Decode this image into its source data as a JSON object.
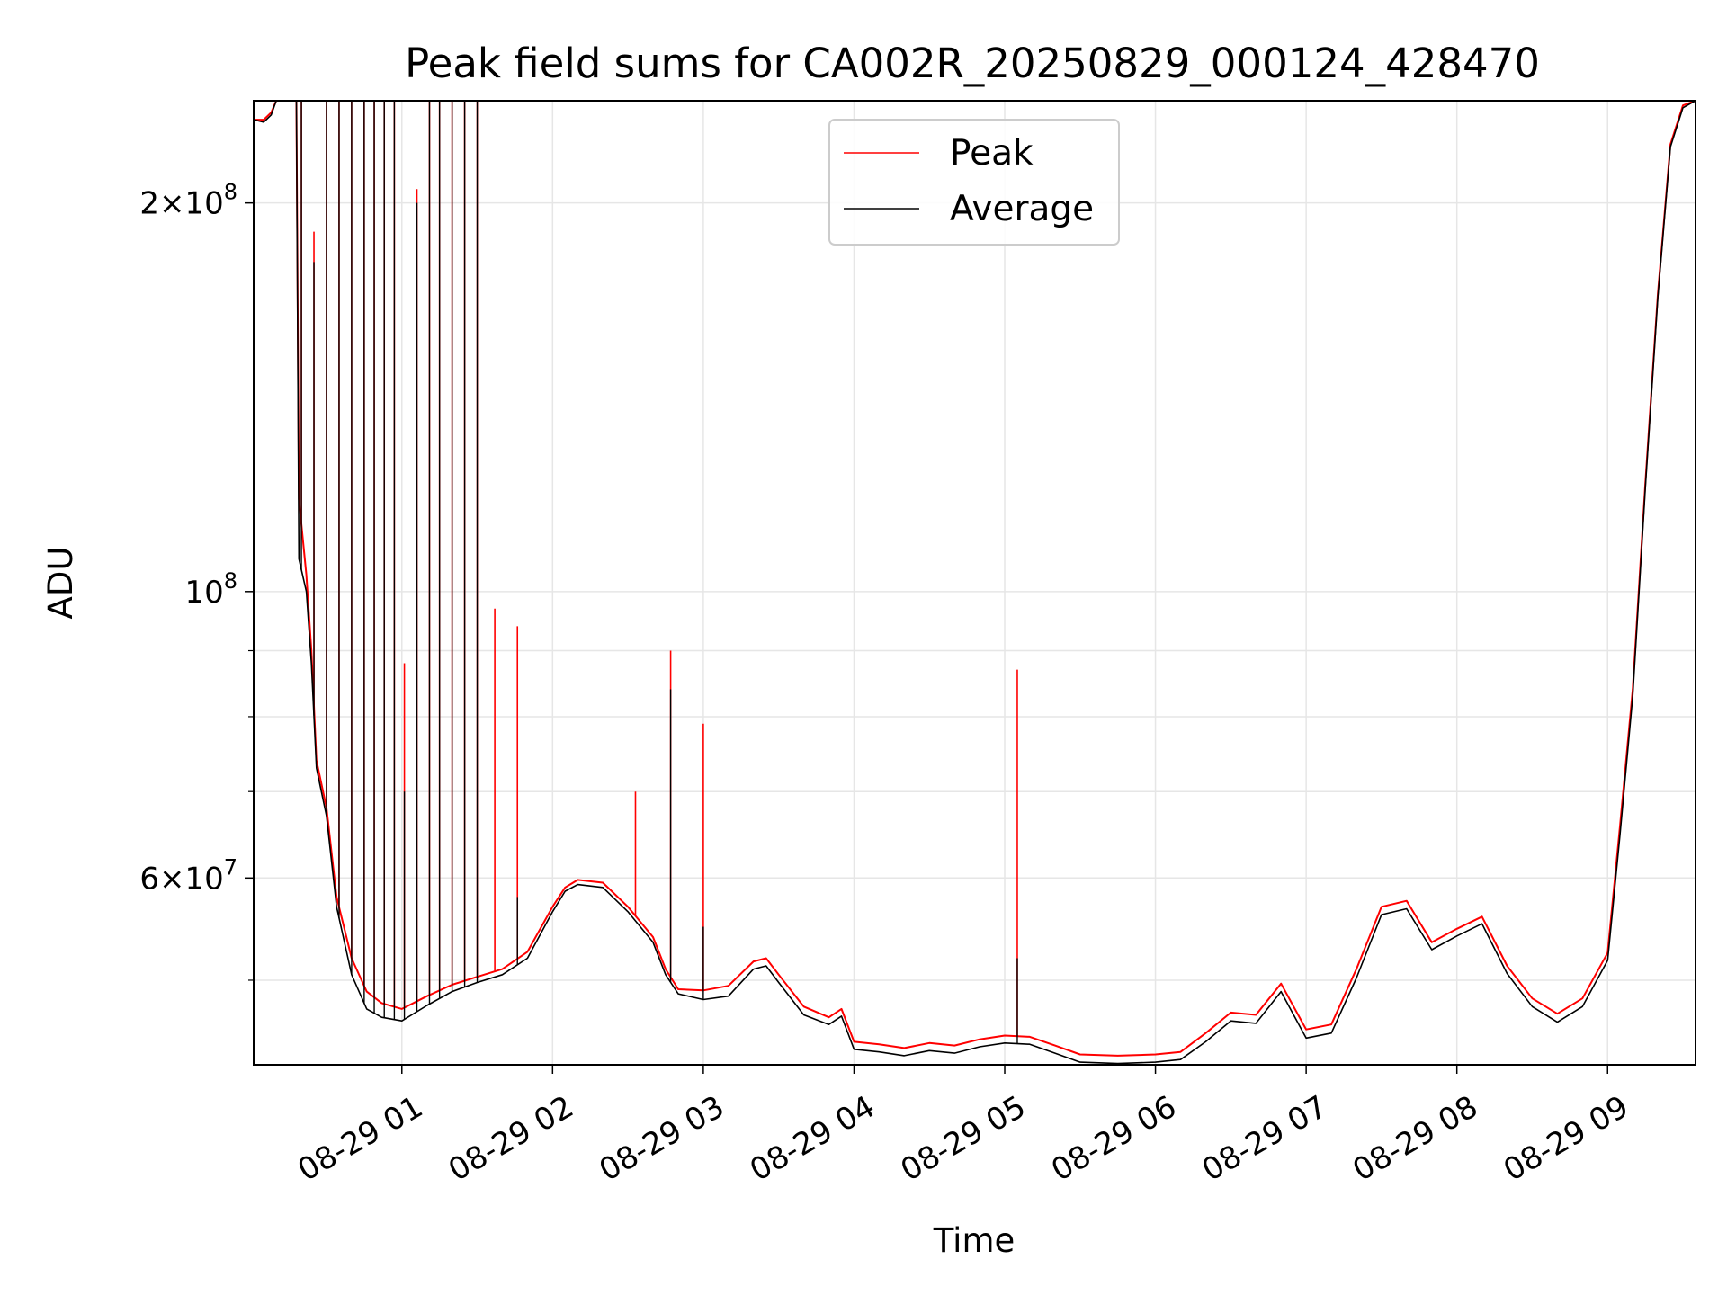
{
  "chart_data": {
    "type": "line",
    "title": "Peak field sums for CA002R_20250829_000124_428470",
    "xlabel": "Time",
    "ylabel": "ADU",
    "y_scale": "log",
    "ylim": [
      43000000,
      240000000
    ],
    "xlim": [
      "2025-08-29 00:01",
      "2025-08-29 09:35"
    ],
    "x_ticks": [
      {
        "t": "2025-08-29 01:00",
        "label": "08-29 01"
      },
      {
        "t": "2025-08-29 02:00",
        "label": "08-29 02"
      },
      {
        "t": "2025-08-29 03:00",
        "label": "08-29 03"
      },
      {
        "t": "2025-08-29 04:00",
        "label": "08-29 04"
      },
      {
        "t": "2025-08-29 05:00",
        "label": "08-29 05"
      },
      {
        "t": "2025-08-29 06:00",
        "label": "08-29 06"
      },
      {
        "t": "2025-08-29 07:00",
        "label": "08-29 07"
      },
      {
        "t": "2025-08-29 08:00",
        "label": "08-29 08"
      },
      {
        "t": "2025-08-29 09:00",
        "label": "08-29 09"
      }
    ],
    "y_ticks": [
      {
        "value": 60000000,
        "mantissa": "6",
        "exponent": "7"
      },
      {
        "value": 100000000,
        "mantissa": "",
        "exponent": "8"
      },
      {
        "value": 200000000,
        "mantissa": "2",
        "exponent": "8"
      }
    ],
    "y_minor_ticks": [
      50000000,
      70000000,
      80000000,
      90000000
    ],
    "grid": true,
    "legend_position": "top-center",
    "series": [
      {
        "name": "Peak",
        "color": "#ff0000",
        "points": [
          [
            "2025-08-29 00:01",
            232000000
          ],
          [
            "2025-08-29 00:05",
            232000000
          ],
          [
            "2025-08-29 00:08",
            235000000
          ],
          [
            "2025-08-29 00:10",
            240000000
          ],
          [
            "2025-08-29 00:18",
            240000000
          ],
          [
            "2025-08-29 00:19",
            118000000
          ],
          [
            "2025-08-29 00:22",
            103000000
          ],
          [
            "2025-08-29 00:24",
            90000000
          ],
          [
            "2025-08-29 00:26",
            74000000
          ],
          [
            "2025-08-29 00:30",
            68000000
          ],
          [
            "2025-08-29 00:34",
            58000000
          ],
          [
            "2025-08-29 00:40",
            52000000
          ],
          [
            "2025-08-29 00:46",
            49000000
          ],
          [
            "2025-08-29 00:52",
            48000000
          ],
          [
            "2025-08-29 01:00",
            47500000
          ],
          [
            "2025-08-29 01:10",
            48600000
          ],
          [
            "2025-08-29 01:20",
            49600000
          ],
          [
            "2025-08-29 01:30",
            50300000
          ],
          [
            "2025-08-29 01:40",
            51000000
          ],
          [
            "2025-08-29 01:50",
            52600000
          ],
          [
            "2025-08-29 02:00",
            57000000
          ],
          [
            "2025-08-29 02:05",
            59000000
          ],
          [
            "2025-08-29 02:10",
            59800000
          ],
          [
            "2025-08-29 02:20",
            59500000
          ],
          [
            "2025-08-29 02:30",
            57000000
          ],
          [
            "2025-08-29 02:40",
            54000000
          ],
          [
            "2025-08-29 02:45",
            51000000
          ],
          [
            "2025-08-29 02:50",
            49200000
          ],
          [
            "2025-08-29 03:00",
            49100000
          ],
          [
            "2025-08-29 03:10",
            49500000
          ],
          [
            "2025-08-29 03:20",
            51700000
          ],
          [
            "2025-08-29 03:25",
            52000000
          ],
          [
            "2025-08-29 03:30",
            50500000
          ],
          [
            "2025-08-29 03:40",
            47700000
          ],
          [
            "2025-08-29 03:50",
            46800000
          ],
          [
            "2025-08-29 03:55",
            47500000
          ],
          [
            "2025-08-29 04:00",
            44800000
          ],
          [
            "2025-08-29 04:10",
            44600000
          ],
          [
            "2025-08-29 04:20",
            44300000
          ],
          [
            "2025-08-29 04:30",
            44700000
          ],
          [
            "2025-08-29 04:40",
            44500000
          ],
          [
            "2025-08-29 04:50",
            45000000
          ],
          [
            "2025-08-29 05:00",
            45300000
          ],
          [
            "2025-08-29 05:10",
            45200000
          ],
          [
            "2025-08-29 05:20",
            44500000
          ],
          [
            "2025-08-29 05:30",
            43800000
          ],
          [
            "2025-08-29 05:45",
            43700000
          ],
          [
            "2025-08-29 06:00",
            43800000
          ],
          [
            "2025-08-29 06:10",
            44000000
          ],
          [
            "2025-08-29 06:20",
            45500000
          ],
          [
            "2025-08-29 06:30",
            47200000
          ],
          [
            "2025-08-29 06:40",
            47000000
          ],
          [
            "2025-08-29 06:50",
            49700000
          ],
          [
            "2025-08-29 07:00",
            45800000
          ],
          [
            "2025-08-29 07:10",
            46200000
          ],
          [
            "2025-08-29 07:20",
            51000000
          ],
          [
            "2025-08-29 07:30",
            57000000
          ],
          [
            "2025-08-29 07:40",
            57600000
          ],
          [
            "2025-08-29 07:50",
            53500000
          ],
          [
            "2025-08-29 08:00",
            54800000
          ],
          [
            "2025-08-29 08:10",
            56000000
          ],
          [
            "2025-08-29 08:20",
            51300000
          ],
          [
            "2025-08-29 08:30",
            48400000
          ],
          [
            "2025-08-29 08:40",
            47100000
          ],
          [
            "2025-08-29 08:50",
            48400000
          ],
          [
            "2025-08-29 09:00",
            52500000
          ],
          [
            "2025-08-29 09:05",
            66000000
          ],
          [
            "2025-08-29 09:10",
            84000000
          ],
          [
            "2025-08-29 09:15",
            121000000
          ],
          [
            "2025-08-29 09:20",
            170000000
          ],
          [
            "2025-08-29 09:25",
            222000000
          ],
          [
            "2025-08-29 09:30",
            238000000
          ],
          [
            "2025-08-29 09:35",
            240000000
          ]
        ],
        "spikes": [
          [
            "2025-08-29 00:20",
            240000000
          ],
          [
            "2025-08-29 00:25",
            190000000
          ],
          [
            "2025-08-29 00:30",
            240000000
          ],
          [
            "2025-08-29 00:35",
            240000000
          ],
          [
            "2025-08-29 00:40",
            240000000
          ],
          [
            "2025-08-29 00:45",
            240000000
          ],
          [
            "2025-08-29 00:49",
            240000000
          ],
          [
            "2025-08-29 00:53",
            240000000
          ],
          [
            "2025-08-29 00:57",
            240000000
          ],
          [
            "2025-08-29 01:01",
            88000000
          ],
          [
            "2025-08-29 01:06",
            205000000
          ],
          [
            "2025-08-29 01:11",
            240000000
          ],
          [
            "2025-08-29 01:15",
            240000000
          ],
          [
            "2025-08-29 01:20",
            240000000
          ],
          [
            "2025-08-29 01:25",
            240000000
          ],
          [
            "2025-08-29 01:30",
            240000000
          ],
          [
            "2025-08-29 01:37",
            97000000
          ],
          [
            "2025-08-29 01:46",
            94000000
          ],
          [
            "2025-08-29 02:33",
            70000000
          ],
          [
            "2025-08-29 02:47",
            90000000
          ],
          [
            "2025-08-29 03:00",
            79000000
          ],
          [
            "2025-08-29 05:05",
            87000000
          ]
        ]
      },
      {
        "name": "Average",
        "color": "#000000",
        "points": [
          [
            "2025-08-29 00:01",
            232000000
          ],
          [
            "2025-08-29 00:05",
            231000000
          ],
          [
            "2025-08-29 00:08",
            234000000
          ],
          [
            "2025-08-29 00:10",
            240000000
          ],
          [
            "2025-08-29 00:18",
            240000000
          ],
          [
            "2025-08-29 00:19",
            106000000
          ],
          [
            "2025-08-29 00:22",
            100000000
          ],
          [
            "2025-08-29 00:24",
            88000000
          ],
          [
            "2025-08-29 00:26",
            73000000
          ],
          [
            "2025-08-29 00:30",
            67000000
          ],
          [
            "2025-08-29 00:34",
            57000000
          ],
          [
            "2025-08-29 00:40",
            50500000
          ],
          [
            "2025-08-29 00:46",
            47500000
          ],
          [
            "2025-08-29 00:52",
            46800000
          ],
          [
            "2025-08-29 01:00",
            46500000
          ],
          [
            "2025-08-29 01:10",
            47800000
          ],
          [
            "2025-08-29 01:20",
            49000000
          ],
          [
            "2025-08-29 01:30",
            49800000
          ],
          [
            "2025-08-29 01:40",
            50500000
          ],
          [
            "2025-08-29 01:50",
            52000000
          ],
          [
            "2025-08-29 02:00",
            56500000
          ],
          [
            "2025-08-29 02:05",
            58600000
          ],
          [
            "2025-08-29 02:10",
            59300000
          ],
          [
            "2025-08-29 02:20",
            59000000
          ],
          [
            "2025-08-29 02:30",
            56500000
          ],
          [
            "2025-08-29 02:40",
            53500000
          ],
          [
            "2025-08-29 02:45",
            50500000
          ],
          [
            "2025-08-29 02:50",
            48800000
          ],
          [
            "2025-08-29 03:00",
            48300000
          ],
          [
            "2025-08-29 03:10",
            48600000
          ],
          [
            "2025-08-29 03:20",
            51000000
          ],
          [
            "2025-08-29 03:25",
            51300000
          ],
          [
            "2025-08-29 03:30",
            49800000
          ],
          [
            "2025-08-29 03:40",
            47000000
          ],
          [
            "2025-08-29 03:50",
            46200000
          ],
          [
            "2025-08-29 03:55",
            46900000
          ],
          [
            "2025-08-29 04:00",
            44200000
          ],
          [
            "2025-08-29 04:10",
            44000000
          ],
          [
            "2025-08-29 04:20",
            43700000
          ],
          [
            "2025-08-29 04:30",
            44100000
          ],
          [
            "2025-08-29 04:40",
            43900000
          ],
          [
            "2025-08-29 04:50",
            44400000
          ],
          [
            "2025-08-29 05:00",
            44700000
          ],
          [
            "2025-08-29 05:10",
            44600000
          ],
          [
            "2025-08-29 05:20",
            43900000
          ],
          [
            "2025-08-29 05:30",
            43200000
          ],
          [
            "2025-08-29 05:45",
            43100000
          ],
          [
            "2025-08-29 06:00",
            43200000
          ],
          [
            "2025-08-29 06:10",
            43400000
          ],
          [
            "2025-08-29 06:20",
            44800000
          ],
          [
            "2025-08-29 06:30",
            46500000
          ],
          [
            "2025-08-29 06:40",
            46300000
          ],
          [
            "2025-08-29 06:50",
            49000000
          ],
          [
            "2025-08-29 07:00",
            45100000
          ],
          [
            "2025-08-29 07:10",
            45500000
          ],
          [
            "2025-08-29 07:20",
            50200000
          ],
          [
            "2025-08-29 07:30",
            56200000
          ],
          [
            "2025-08-29 07:40",
            56800000
          ],
          [
            "2025-08-29 07:50",
            52800000
          ],
          [
            "2025-08-29 08:00",
            54100000
          ],
          [
            "2025-08-29 08:10",
            55300000
          ],
          [
            "2025-08-29 08:20",
            50600000
          ],
          [
            "2025-08-29 08:30",
            47700000
          ],
          [
            "2025-08-29 08:40",
            46400000
          ],
          [
            "2025-08-29 08:50",
            47700000
          ],
          [
            "2025-08-29 09:00",
            51800000
          ],
          [
            "2025-08-29 09:05",
            65000000
          ],
          [
            "2025-08-29 09:10",
            83000000
          ],
          [
            "2025-08-29 09:15",
            120000000
          ],
          [
            "2025-08-29 09:20",
            169000000
          ],
          [
            "2025-08-29 09:25",
            221000000
          ],
          [
            "2025-08-29 09:30",
            237000000
          ],
          [
            "2025-08-29 09:35",
            240000000
          ]
        ],
        "spikes": [
          [
            "2025-08-29 00:20",
            240000000
          ],
          [
            "2025-08-29 00:25",
            180000000
          ],
          [
            "2025-08-29 00:30",
            240000000
          ],
          [
            "2025-08-29 00:35",
            240000000
          ],
          [
            "2025-08-29 00:40",
            240000000
          ],
          [
            "2025-08-29 00:45",
            240000000
          ],
          [
            "2025-08-29 00:49",
            240000000
          ],
          [
            "2025-08-29 00:53",
            240000000
          ],
          [
            "2025-08-29 00:57",
            240000000
          ],
          [
            "2025-08-29 01:01",
            70000000
          ],
          [
            "2025-08-29 01:06",
            200000000
          ],
          [
            "2025-08-29 01:11",
            240000000
          ],
          [
            "2025-08-29 01:15",
            240000000
          ],
          [
            "2025-08-29 01:20",
            240000000
          ],
          [
            "2025-08-29 01:25",
            240000000
          ],
          [
            "2025-08-29 01:30",
            240000000
          ],
          [
            "2025-08-29 01:46",
            58000000
          ],
          [
            "2025-08-29 02:47",
            84000000
          ],
          [
            "2025-08-29 03:00",
            55000000
          ],
          [
            "2025-08-29 05:05",
            52000000
          ]
        ]
      }
    ]
  }
}
